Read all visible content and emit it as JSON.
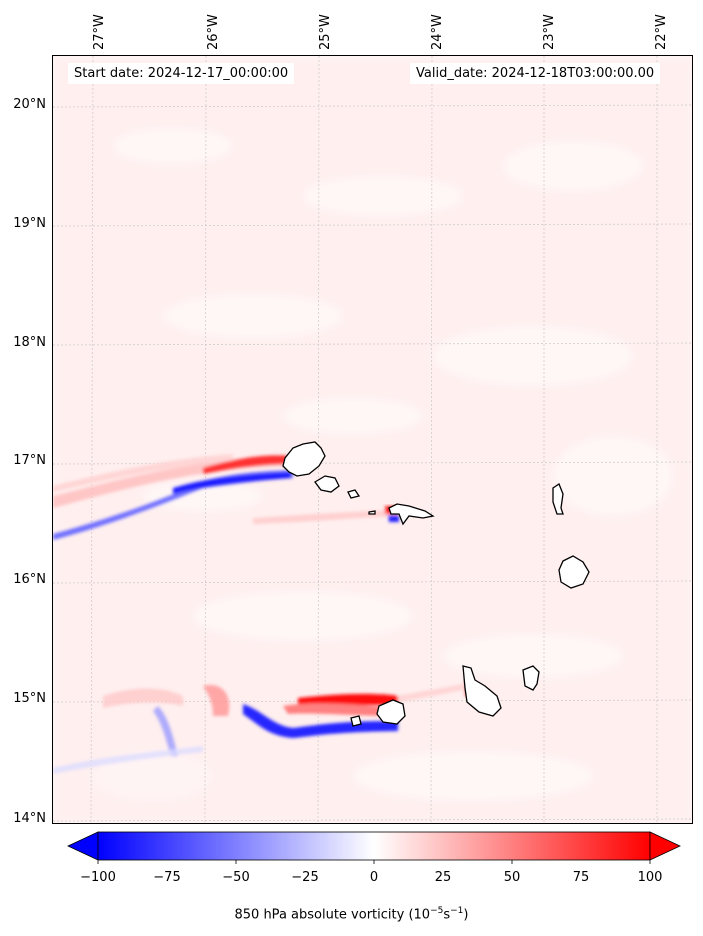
{
  "map": {
    "start_date_label": "Start date: 2024-12-17_00:00:00",
    "valid_date_label": "Valid_date: 2024-12-18T03:00:00.00",
    "longitude_labels": [
      "27°W",
      "26°W",
      "25°W",
      "24°W",
      "23°W",
      "22°W"
    ],
    "latitude_labels": [
      "20°N",
      "19°N",
      "18°N",
      "17°N",
      "16°N",
      "15°N",
      "14°N"
    ],
    "features": [
      "Santo Antão",
      "São Vicente",
      "Santa Luzia",
      "São Nicolau",
      "Sal",
      "Boa Vista",
      "Maio",
      "Santiago",
      "Fogo",
      "Brava"
    ]
  },
  "colorbar": {
    "ticks": [
      "−100",
      "−75",
      "−50",
      "−25",
      "0",
      "25",
      "50",
      "75",
      "100"
    ],
    "label_prefix": "850 hPa absolute vorticity (10",
    "label_exp1": "−5",
    "label_mid": "s",
    "label_exp2": "−1",
    "label_suffix": ")",
    "colors": {
      "negative": "#0000ff",
      "zero": "#ffffff",
      "positive": "#ff0000"
    }
  }
}
